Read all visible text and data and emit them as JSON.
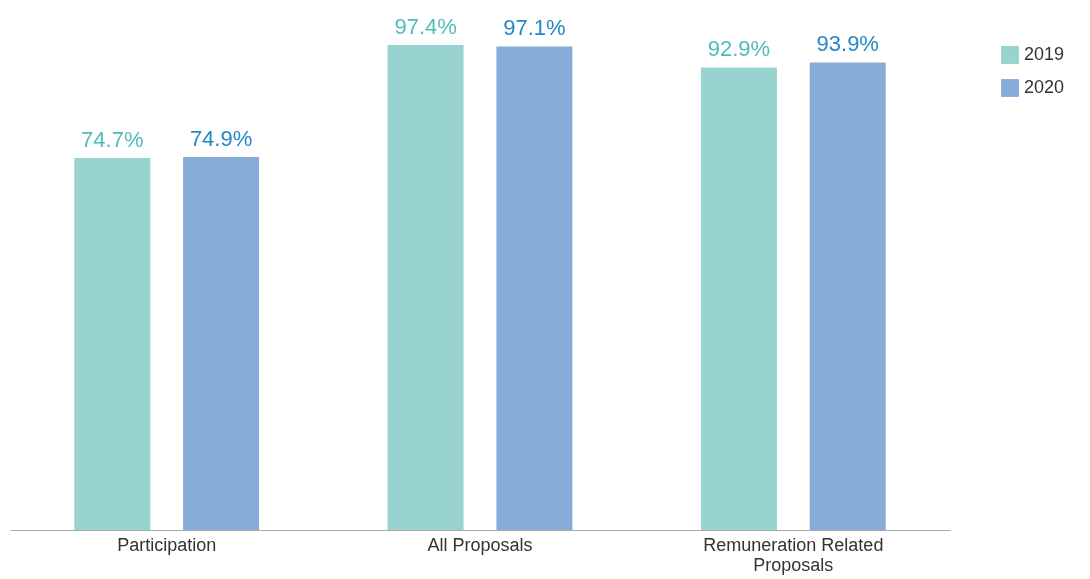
{
  "chart_data": {
    "type": "bar",
    "categories": [
      "Participation",
      "All Proposals",
      "Remuneration Related Proposals"
    ],
    "series": [
      {
        "name": "2019",
        "color": "#99d3d0",
        "values": [
          74.7,
          97.4,
          92.9
        ],
        "value_labels": [
          "74.7%",
          "97.4%",
          "92.9%"
        ]
      },
      {
        "name": "2020",
        "color": "#88acd8",
        "values": [
          74.9,
          97.1,
          93.9
        ],
        "value_labels": [
          "74.9%",
          "97.1%",
          "93.9%"
        ]
      }
    ],
    "legend": "right"
  }
}
